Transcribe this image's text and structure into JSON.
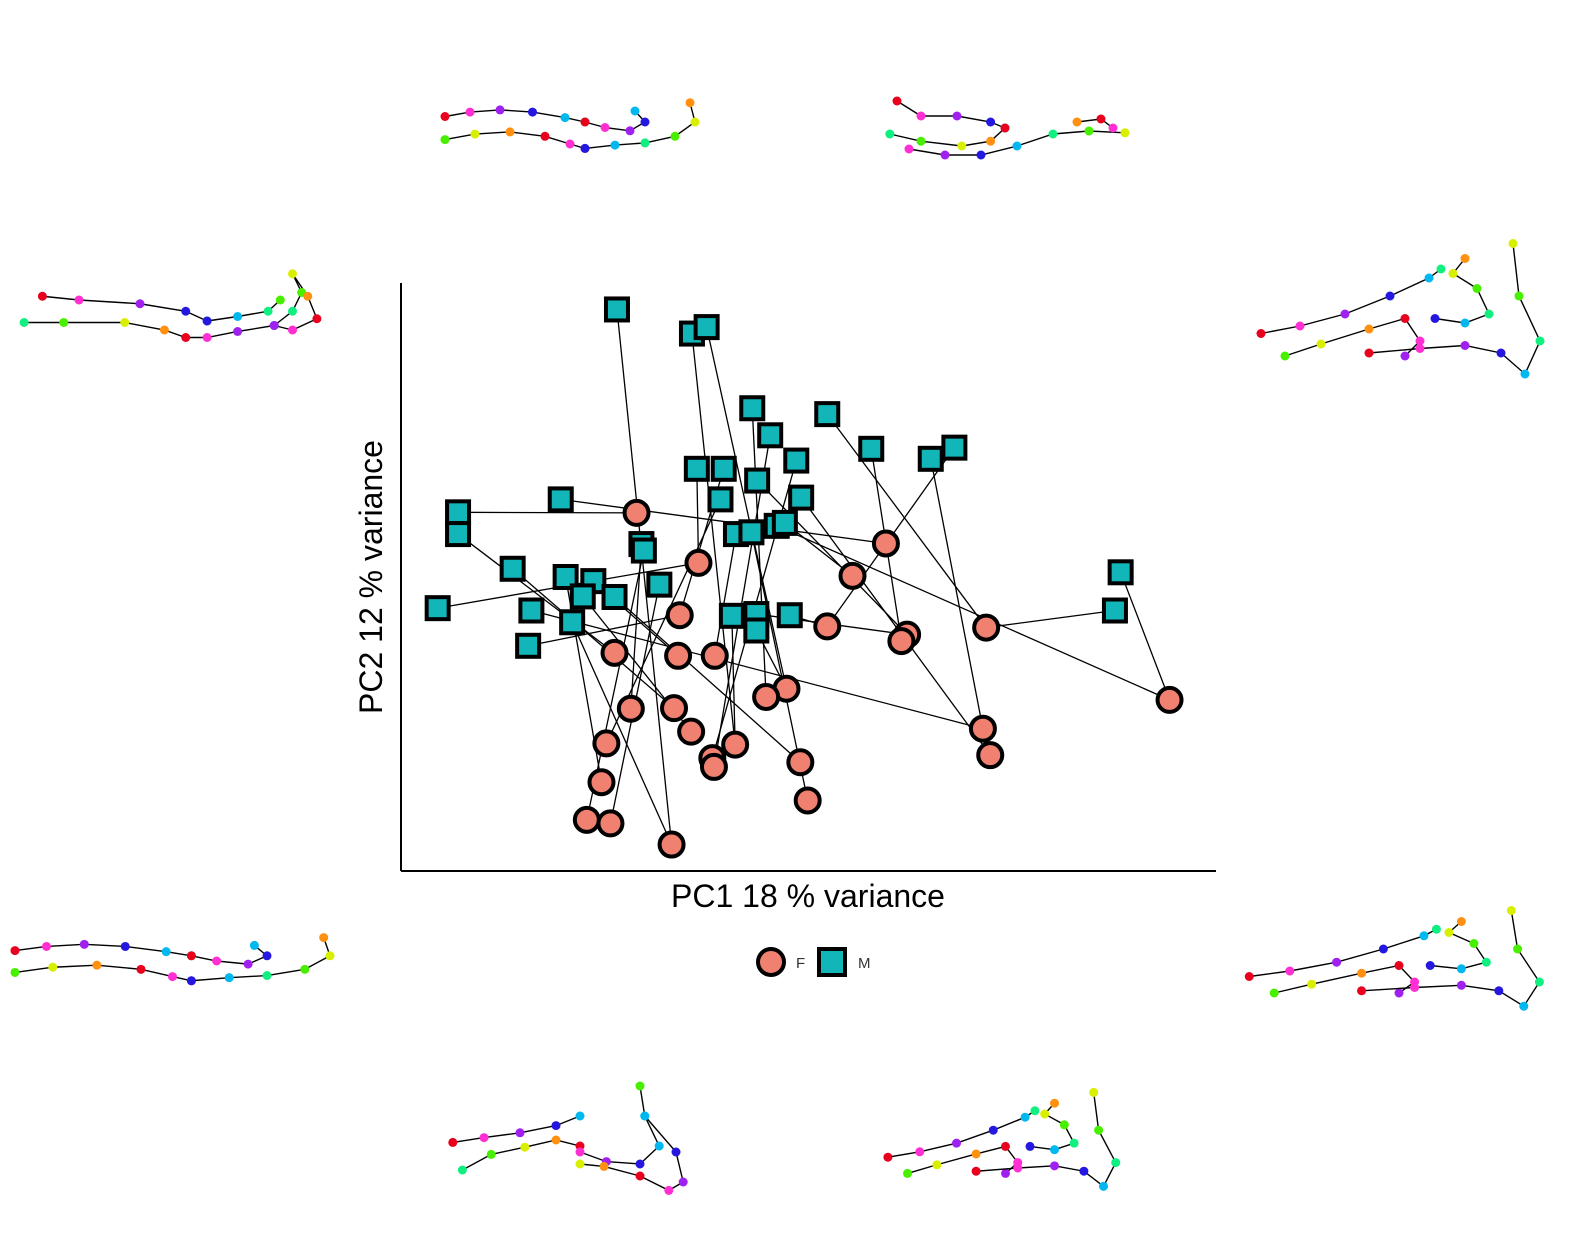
{
  "chart_data": {
    "type": "scatter",
    "title": "",
    "xlabel": "PC1  18 % variance",
    "ylabel": "PC2  12 % variance",
    "xlim": [
      0.0,
      1.0
    ],
    "ylim": [
      0.0,
      1.0
    ],
    "grid": false,
    "legend": {
      "position": "bottom",
      "entries": [
        {
          "label": "F",
          "color": "#f08070",
          "shape": "circle"
        },
        {
          "label": "M",
          "color": "#12b5b8",
          "shape": "square"
        }
      ]
    },
    "series": [
      {
        "name": "F",
        "color": "#f08070",
        "shape": "circle",
        "points": [
          {
            "id": "f1",
            "x": 0.289,
            "y": 0.609
          },
          {
            "id": "f2",
            "x": 0.365,
            "y": 0.524
          },
          {
            "id": "f3",
            "x": 0.595,
            "y": 0.557
          },
          {
            "id": "f4",
            "x": 0.554,
            "y": 0.502
          },
          {
            "id": "f5",
            "x": 0.342,
            "y": 0.435
          },
          {
            "id": "f6",
            "x": 0.262,
            "y": 0.371
          },
          {
            "id": "f7",
            "x": 0.34,
            "y": 0.366
          },
          {
            "id": "f8",
            "x": 0.385,
            "y": 0.366
          },
          {
            "id": "f9",
            "x": 0.523,
            "y": 0.416
          },
          {
            "id": "f10",
            "x": 0.621,
            "y": 0.402
          },
          {
            "id": "f11",
            "x": 0.614,
            "y": 0.391
          },
          {
            "id": "f12",
            "x": 0.718,
            "y": 0.414
          },
          {
            "id": "f13",
            "x": 0.943,
            "y": 0.291
          },
          {
            "id": "f14",
            "x": 0.473,
            "y": 0.31
          },
          {
            "id": "f15",
            "x": 0.448,
            "y": 0.296
          },
          {
            "id": "f16",
            "x": 0.282,
            "y": 0.276
          },
          {
            "id": "f17",
            "x": 0.335,
            "y": 0.277
          },
          {
            "id": "f18",
            "x": 0.356,
            "y": 0.237
          },
          {
            "id": "f19",
            "x": 0.41,
            "y": 0.215
          },
          {
            "id": "f20",
            "x": 0.252,
            "y": 0.217
          },
          {
            "id": "f21",
            "x": 0.382,
            "y": 0.192
          },
          {
            "id": "f22",
            "x": 0.384,
            "y": 0.177
          },
          {
            "id": "f23",
            "x": 0.49,
            "y": 0.185
          },
          {
            "id": "f24",
            "x": 0.246,
            "y": 0.151
          },
          {
            "id": "f25",
            "x": 0.499,
            "y": 0.12
          },
          {
            "id": "f26",
            "x": 0.228,
            "y": 0.087
          },
          {
            "id": "f27",
            "x": 0.257,
            "y": 0.081
          },
          {
            "id": "f28",
            "x": 0.332,
            "y": 0.045
          },
          {
            "id": "f29",
            "x": 0.714,
            "y": 0.242
          },
          {
            "id": "f30",
            "x": 0.723,
            "y": 0.197
          }
        ]
      },
      {
        "name": "M",
        "color": "#12b5b8",
        "shape": "square",
        "points": [
          {
            "id": "m1",
            "x": 0.265,
            "y": 0.955
          },
          {
            "id": "m2",
            "x": 0.357,
            "y": 0.914
          },
          {
            "id": "m3",
            "x": 0.375,
            "y": 0.925
          },
          {
            "id": "m4",
            "x": 0.431,
            "y": 0.787
          },
          {
            "id": "m5",
            "x": 0.523,
            "y": 0.777
          },
          {
            "id": "m6",
            "x": 0.453,
            "y": 0.741
          },
          {
            "id": "m7",
            "x": 0.577,
            "y": 0.718
          },
          {
            "id": "m8",
            "x": 0.679,
            "y": 0.72
          },
          {
            "id": "m9",
            "x": 0.65,
            "y": 0.701
          },
          {
            "id": "m10",
            "x": 0.485,
            "y": 0.698
          },
          {
            "id": "m11",
            "x": 0.363,
            "y": 0.684
          },
          {
            "id": "m12",
            "x": 0.396,
            "y": 0.684
          },
          {
            "id": "m13",
            "x": 0.437,
            "y": 0.664
          },
          {
            "id": "m14",
            "x": 0.392,
            "y": 0.632
          },
          {
            "id": "m15",
            "x": 0.491,
            "y": 0.635
          },
          {
            "id": "m16",
            "x": 0.196,
            "y": 0.632
          },
          {
            "id": "m17",
            "x": 0.07,
            "y": 0.61
          },
          {
            "id": "m18",
            "x": 0.07,
            "y": 0.573
          },
          {
            "id": "m19",
            "x": 0.295,
            "y": 0.556
          },
          {
            "id": "m20",
            "x": 0.298,
            "y": 0.545
          },
          {
            "id": "m21",
            "x": 0.411,
            "y": 0.573
          },
          {
            "id": "m22",
            "x": 0.43,
            "y": 0.576
          },
          {
            "id": "m23",
            "x": 0.461,
            "y": 0.587
          },
          {
            "id": "m24",
            "x": 0.471,
            "y": 0.592
          },
          {
            "id": "m25",
            "x": 0.137,
            "y": 0.514
          },
          {
            "id": "m26",
            "x": 0.202,
            "y": 0.5
          },
          {
            "id": "m27",
            "x": 0.236,
            "y": 0.493
          },
          {
            "id": "m28",
            "x": 0.317,
            "y": 0.487
          },
          {
            "id": "m29",
            "x": 0.223,
            "y": 0.467
          },
          {
            "id": "m30",
            "x": 0.262,
            "y": 0.466
          },
          {
            "id": "m31",
            "x": 0.883,
            "y": 0.508
          },
          {
            "id": "m32",
            "x": 0.876,
            "y": 0.443
          },
          {
            "id": "m33",
            "x": 0.045,
            "y": 0.447
          },
          {
            "id": "m34",
            "x": 0.16,
            "y": 0.443
          },
          {
            "id": "m35",
            "x": 0.21,
            "y": 0.423
          },
          {
            "id": "m36",
            "x": 0.406,
            "y": 0.434
          },
          {
            "id": "m37",
            "x": 0.436,
            "y": 0.437
          },
          {
            "id": "m38",
            "x": 0.477,
            "y": 0.435
          },
          {
            "id": "m39",
            "x": 0.436,
            "y": 0.409
          },
          {
            "id": "m40",
            "x": 0.156,
            "y": 0.383
          }
        ]
      }
    ],
    "connectors": [
      [
        "m1",
        "f28"
      ],
      [
        "m2",
        "f19"
      ],
      [
        "m3",
        "f14"
      ],
      [
        "m4",
        "f15"
      ],
      [
        "m5",
        "f12"
      ],
      [
        "m6",
        "f22"
      ],
      [
        "m7",
        "f11"
      ],
      [
        "m8",
        "f9"
      ],
      [
        "m9",
        "f29"
      ],
      [
        "m10",
        "f21"
      ],
      [
        "m11",
        "f2"
      ],
      [
        "m12",
        "f5"
      ],
      [
        "m13",
        "f10"
      ],
      [
        "m14",
        "f20"
      ],
      [
        "m15",
        "f30"
      ],
      [
        "m16",
        "f3"
      ],
      [
        "m17",
        "f1"
      ],
      [
        "m18",
        "f6"
      ],
      [
        "m19",
        "f16"
      ],
      [
        "m20",
        "f26"
      ],
      [
        "m21",
        "f8"
      ],
      [
        "m22",
        "f25"
      ],
      [
        "m23",
        "f13"
      ],
      [
        "m24",
        "f4"
      ],
      [
        "m25",
        "f17"
      ],
      [
        "m26",
        "f24"
      ],
      [
        "m27",
        "f7"
      ],
      [
        "m28",
        "f27"
      ],
      [
        "m29",
        "f18"
      ],
      [
        "m30",
        "f23"
      ],
      [
        "m31",
        "f13"
      ],
      [
        "m32",
        "f12"
      ],
      [
        "m33",
        "f2"
      ],
      [
        "m34",
        "f29"
      ],
      [
        "m35",
        "f28"
      ],
      [
        "m36",
        "f19"
      ],
      [
        "m37",
        "f10"
      ],
      [
        "m38",
        "f9"
      ],
      [
        "m39",
        "f14"
      ],
      [
        "m40",
        "f5"
      ]
    ]
  },
  "shape_thumbnails": {
    "segment_colors": [
      "#e8001c",
      "#ff2fd4",
      "#a020f0",
      "#2418e0",
      "#00b8f0",
      "#10f080",
      "#48f000",
      "#d8f000",
      "#ff9010"
    ],
    "shapes": [
      {
        "id": "top-left",
        "kind": "flat"
      },
      {
        "id": "top-right",
        "kind": "flat-loop"
      },
      {
        "id": "mid-left",
        "kind": "loop"
      },
      {
        "id": "mid-right",
        "kind": "hook"
      },
      {
        "id": "lower-left",
        "kind": "flat"
      },
      {
        "id": "lower-right",
        "kind": "hook"
      },
      {
        "id": "bottom-left",
        "kind": "hook-small"
      },
      {
        "id": "bottom-right",
        "kind": "hook"
      }
    ]
  }
}
